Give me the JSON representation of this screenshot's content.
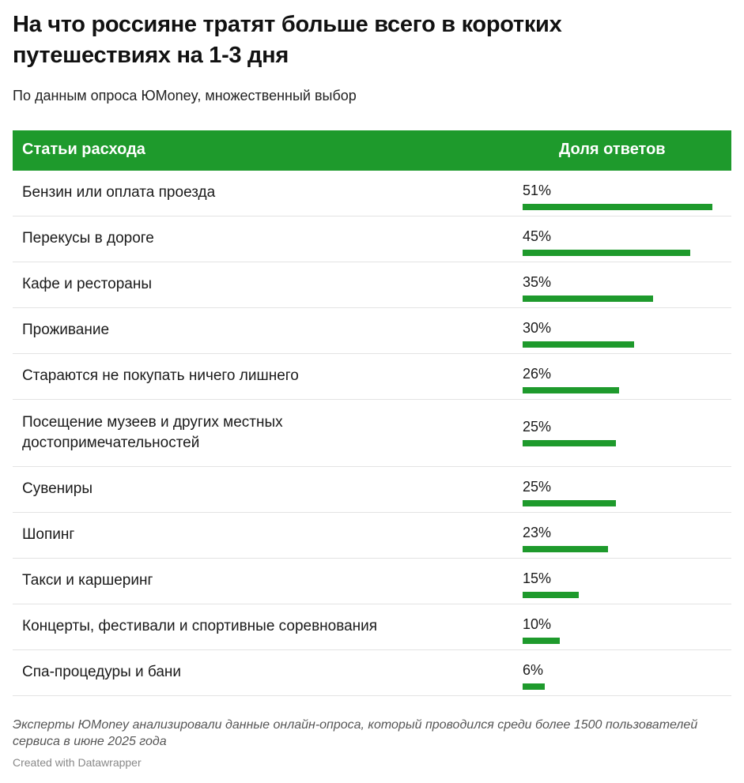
{
  "title": "На что россияне тратят больше всего в коротких путешествиях на 1-3 дня",
  "subtitle": "По данным опроса ЮMoney, множественный выбор",
  "table": {
    "col1": "Статьи расхода",
    "col2": "Доля ответов",
    "accent": "#1e9a2c"
  },
  "chart_data": {
    "type": "table",
    "max": 51,
    "rows": [
      {
        "label": "Бензин или оплата проезда",
        "value": 51,
        "value_label": "51%"
      },
      {
        "label": "Перекусы в дороге",
        "value": 45,
        "value_label": "45%"
      },
      {
        "label": "Кафе и рестораны",
        "value": 35,
        "value_label": "35%"
      },
      {
        "label": "Проживание",
        "value": 30,
        "value_label": "30%"
      },
      {
        "label": "Стараются не покупать ничего лишнего",
        "value": 26,
        "value_label": "26%"
      },
      {
        "label": "Посещение музеев и других местных достопримечательностей",
        "value": 25,
        "value_label": "25%"
      },
      {
        "label": "Сувениры",
        "value": 25,
        "value_label": "25%"
      },
      {
        "label": "Шопинг",
        "value": 23,
        "value_label": "23%"
      },
      {
        "label": "Такси и каршеринг",
        "value": 15,
        "value_label": "15%"
      },
      {
        "label": "Концерты, фестивали и спортивные соревнования",
        "value": 10,
        "value_label": "10%"
      },
      {
        "label": "Спа-процедуры и бани",
        "value": 6,
        "value_label": "6%"
      }
    ]
  },
  "footnote": "Эксперты ЮMoney анализировали данные онлайн-опроса, который проводился среди более 1500 пользователей сервиса в июне 2025 года",
  "credit": "Created with Datawrapper"
}
